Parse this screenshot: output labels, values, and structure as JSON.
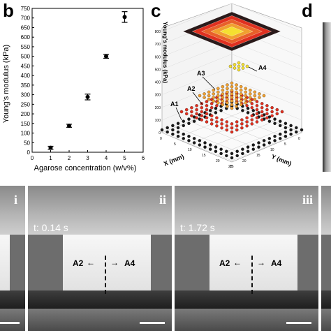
{
  "panels": {
    "b": "b",
    "c": "c",
    "d": "d"
  },
  "chart_data": {
    "type": "scatter",
    "x": [
      1,
      2,
      3,
      4,
      5
    ],
    "values": [
      23,
      138,
      288,
      500,
      705
    ],
    "errors": [
      8,
      8,
      15,
      10,
      28
    ],
    "xlabel": "Agarose concentration (w/v%)",
    "ylabel": "Young's modulus (kPa)",
    "xlim": [
      0,
      6
    ],
    "ylim": [
      0,
      750
    ],
    "xticks": [
      "0",
      "1",
      "2",
      "3",
      "4",
      "5",
      "6"
    ],
    "yticks": [
      "0",
      "50",
      "100",
      "150",
      "200",
      "250",
      "300",
      "350",
      "400",
      "450",
      "500",
      "550",
      "600",
      "650",
      "700",
      "750"
    ],
    "grid": false
  },
  "panel_c": {
    "z_label": "Young's modulus (kPa)",
    "x_label": "X (mm)",
    "y_label": "Y (mm)",
    "z_ticks": [
      "0",
      "100",
      "200",
      "300",
      "400",
      "500",
      "600",
      "700",
      "800"
    ],
    "x_ticks": [
      "0",
      "5",
      "10",
      "15",
      "20",
      "25"
    ],
    "y_ticks": [
      "0",
      "5",
      "10",
      "15",
      "20",
      "25"
    ],
    "layers": [
      {
        "label": "A1",
        "color": "#1a1a1a"
      },
      {
        "label": "A2",
        "color": "#e03020"
      },
      {
        "label": "A3",
        "color": "#f0a030"
      },
      {
        "label": "A4",
        "color": "#f5e030"
      }
    ]
  },
  "frames": [
    {
      "roman": "i",
      "time": ""
    },
    {
      "roman": "ii",
      "time": "t: 0.14 s",
      "left_label": "A2",
      "right_label": "A4"
    },
    {
      "roman": "iii",
      "time": "t: 1.72 s",
      "left_label": "A2",
      "right_label": "A4"
    }
  ]
}
